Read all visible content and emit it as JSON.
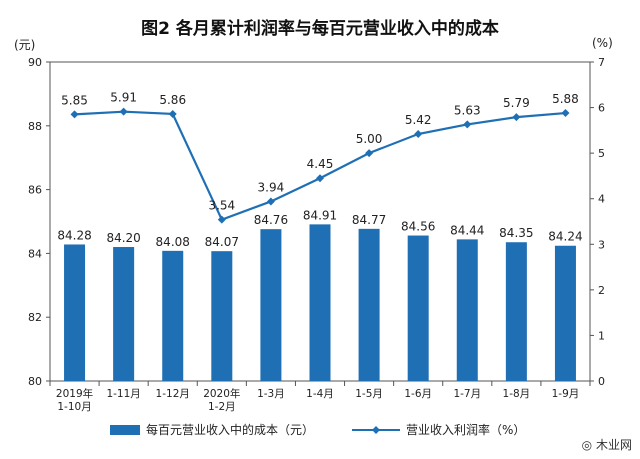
{
  "chart_data": {
    "type": "bar+line",
    "title": "图2  各月累计利润率与每百元营业收入中的成本",
    "left_unit": "(元)",
    "right_unit": "(%)",
    "categories": [
      [
        "2019年",
        "1-10月"
      ],
      [
        "1-11月"
      ],
      [
        "1-12月"
      ],
      [
        "2020年",
        "1-2月"
      ],
      [
        "1-3月"
      ],
      [
        "1-4月"
      ],
      [
        "1-5月"
      ],
      [
        "1-6月"
      ],
      [
        "1-7月"
      ],
      [
        "1-8月"
      ],
      [
        "1-9月"
      ]
    ],
    "series": [
      {
        "name": "每百元营业收入中的成本（元）",
        "type": "bar",
        "axis": "left",
        "color": "#1f6fb5",
        "values": [
          84.28,
          84.2,
          84.08,
          84.07,
          84.76,
          84.91,
          84.77,
          84.56,
          84.44,
          84.35,
          84.24
        ],
        "labels": [
          "84.28",
          "84.20",
          "84.08",
          "84.07",
          "84.76",
          "84.91",
          "84.77",
          "84.56",
          "84.44",
          "84.35",
          "84.24"
        ]
      },
      {
        "name": "营业收入利润率（%）",
        "type": "line",
        "axis": "right",
        "color": "#1f6fb5",
        "values": [
          5.85,
          5.91,
          5.86,
          3.54,
          3.94,
          4.45,
          5.0,
          5.42,
          5.63,
          5.79,
          5.88
        ],
        "labels": [
          "5.85",
          "5.91",
          "5.86",
          "3.54",
          "3.94",
          "4.45",
          "5.00",
          "5.42",
          "5.63",
          "5.79",
          "5.88"
        ]
      }
    ],
    "y_left": {
      "min": 80,
      "max": 90,
      "ticks": [
        "80",
        "82",
        "84",
        "86",
        "88",
        "90"
      ]
    },
    "y_right": {
      "min": 0,
      "max": 7,
      "ticks": [
        "0",
        "1",
        "2",
        "3",
        "4",
        "5",
        "6",
        "7"
      ]
    },
    "grid": false,
    "legend_position": "bottom"
  },
  "watermark": "木业网"
}
